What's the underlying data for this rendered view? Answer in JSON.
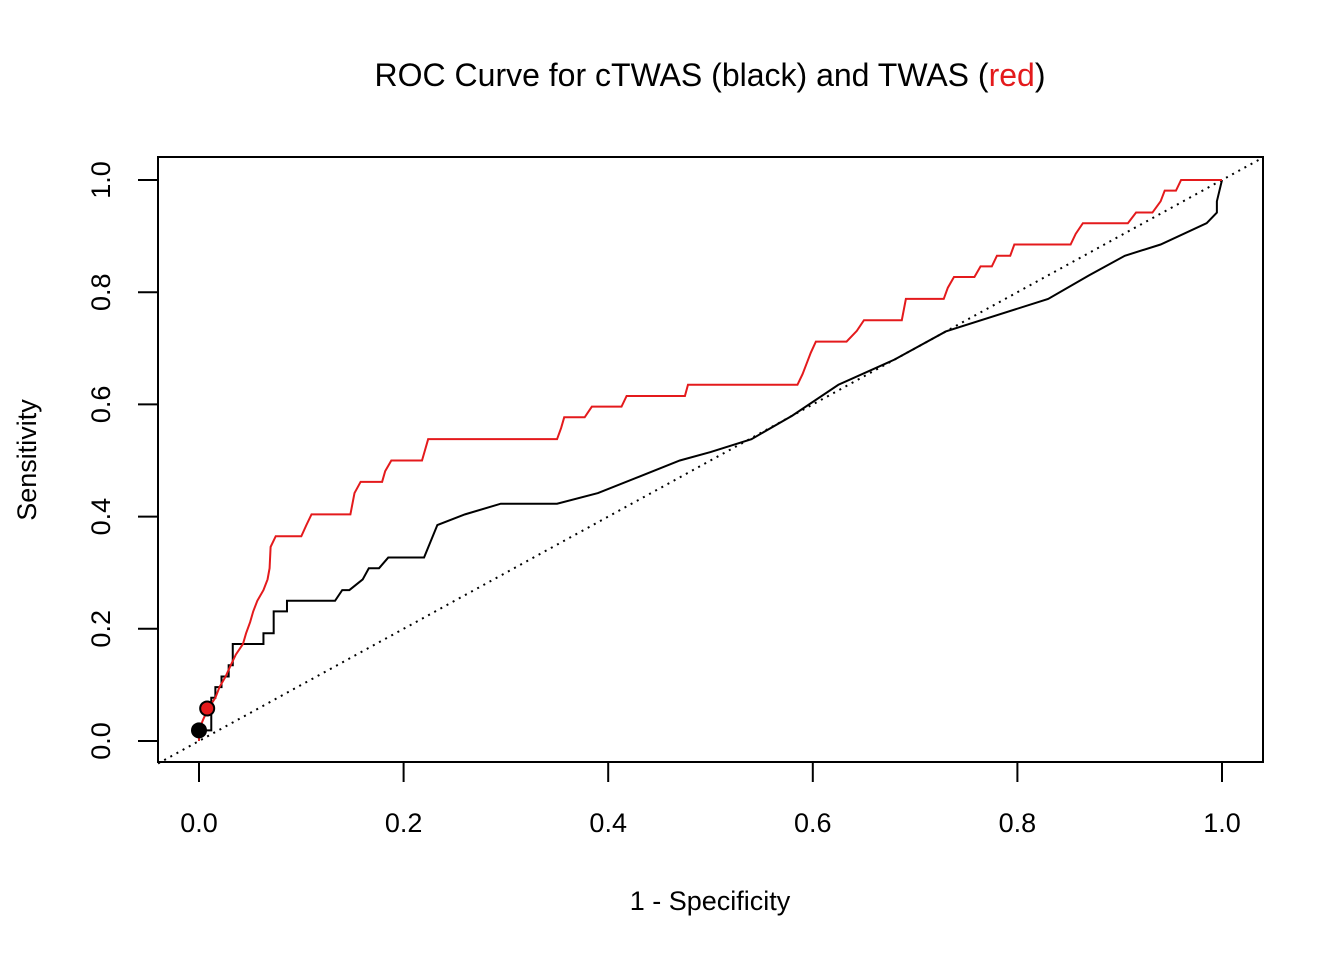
{
  "chart_data": {
    "type": "line",
    "title": {
      "prefix": "ROC Curve for cTWAS (black) and TWAS (",
      "highlight": "red",
      "suffix": ")"
    },
    "xlabel": "1 - Specificity",
    "ylabel": "Sensitivity",
    "xlim": [
      0,
      1
    ],
    "ylim": [
      0,
      1
    ],
    "x_ticks": [
      "0.0",
      "0.2",
      "0.4",
      "0.6",
      "0.8",
      "1.0"
    ],
    "y_ticks": [
      "0.0",
      "0.2",
      "0.4",
      "0.6",
      "0.8",
      "1.0"
    ],
    "grid": false,
    "colors": {
      "ctwas": "#000000",
      "twas": "#e41a1c",
      "reference": "#000000"
    },
    "series": [
      {
        "key": "ctwas",
        "color": "#000000",
        "step": true,
        "points": [
          [
            0.0,
            0.0
          ],
          [
            0.0,
            0.019
          ],
          [
            0.012,
            0.019
          ],
          [
            0.012,
            0.077
          ],
          [
            0.016,
            0.077
          ],
          [
            0.016,
            0.096
          ],
          [
            0.022,
            0.096
          ],
          [
            0.022,
            0.115
          ],
          [
            0.029,
            0.115
          ],
          [
            0.029,
            0.135
          ],
          [
            0.033,
            0.135
          ],
          [
            0.033,
            0.173
          ],
          [
            0.063,
            0.173
          ],
          [
            0.063,
            0.192
          ],
          [
            0.073,
            0.192
          ],
          [
            0.073,
            0.231
          ],
          [
            0.086,
            0.231
          ],
          [
            0.086,
            0.25
          ],
          [
            0.133,
            0.25
          ],
          [
            0.14,
            0.269
          ],
          [
            0.147,
            0.269
          ],
          [
            0.16,
            0.288
          ],
          [
            0.166,
            0.308
          ],
          [
            0.176,
            0.308
          ],
          [
            0.185,
            0.327
          ],
          [
            0.22,
            0.327
          ],
          [
            0.233,
            0.385
          ],
          [
            0.26,
            0.404
          ],
          [
            0.295,
            0.423
          ],
          [
            0.35,
            0.423
          ],
          [
            0.39,
            0.442
          ],
          [
            0.43,
            0.471
          ],
          [
            0.47,
            0.5
          ],
          [
            0.5,
            0.515
          ],
          [
            0.54,
            0.538
          ],
          [
            0.58,
            0.58
          ],
          [
            0.625,
            0.635
          ],
          [
            0.68,
            0.68
          ],
          [
            0.73,
            0.73
          ],
          [
            0.83,
            0.788
          ],
          [
            0.87,
            0.83
          ],
          [
            0.905,
            0.865
          ],
          [
            0.94,
            0.885
          ],
          [
            0.985,
            0.923
          ],
          [
            0.995,
            0.942
          ],
          [
            0.995,
            0.962
          ],
          [
            1.0,
            1.0
          ]
        ]
      },
      {
        "key": "twas",
        "color": "#e41a1c",
        "step": true,
        "points": [
          [
            0.0,
            0.0
          ],
          [
            0.0,
            0.019
          ],
          [
            0.004,
            0.038
          ],
          [
            0.009,
            0.058
          ],
          [
            0.016,
            0.077
          ],
          [
            0.02,
            0.096
          ],
          [
            0.026,
            0.115
          ],
          [
            0.031,
            0.135
          ],
          [
            0.036,
            0.154
          ],
          [
            0.043,
            0.173
          ],
          [
            0.046,
            0.192
          ],
          [
            0.05,
            0.212
          ],
          [
            0.053,
            0.231
          ],
          [
            0.057,
            0.25
          ],
          [
            0.063,
            0.269
          ],
          [
            0.067,
            0.288
          ],
          [
            0.069,
            0.308
          ],
          [
            0.07,
            0.346
          ],
          [
            0.075,
            0.365
          ],
          [
            0.1,
            0.365
          ],
          [
            0.105,
            0.385
          ],
          [
            0.11,
            0.404
          ],
          [
            0.148,
            0.404
          ],
          [
            0.152,
            0.442
          ],
          [
            0.158,
            0.462
          ],
          [
            0.179,
            0.462
          ],
          [
            0.182,
            0.481
          ],
          [
            0.188,
            0.5
          ],
          [
            0.218,
            0.5
          ],
          [
            0.221,
            0.519
          ],
          [
            0.224,
            0.538
          ],
          [
            0.35,
            0.538
          ],
          [
            0.354,
            0.558
          ],
          [
            0.357,
            0.577
          ],
          [
            0.377,
            0.577
          ],
          [
            0.384,
            0.596
          ],
          [
            0.413,
            0.596
          ],
          [
            0.418,
            0.615
          ],
          [
            0.475,
            0.615
          ],
          [
            0.478,
            0.635
          ],
          [
            0.585,
            0.635
          ],
          [
            0.59,
            0.654
          ],
          [
            0.594,
            0.673
          ],
          [
            0.598,
            0.692
          ],
          [
            0.603,
            0.712
          ],
          [
            0.633,
            0.712
          ],
          [
            0.643,
            0.731
          ],
          [
            0.65,
            0.75
          ],
          [
            0.687,
            0.75
          ],
          [
            0.691,
            0.788
          ],
          [
            0.728,
            0.788
          ],
          [
            0.732,
            0.808
          ],
          [
            0.738,
            0.827
          ],
          [
            0.758,
            0.827
          ],
          [
            0.764,
            0.846
          ],
          [
            0.775,
            0.846
          ],
          [
            0.78,
            0.865
          ],
          [
            0.793,
            0.865
          ],
          [
            0.797,
            0.885
          ],
          [
            0.852,
            0.885
          ],
          [
            0.857,
            0.904
          ],
          [
            0.864,
            0.923
          ],
          [
            0.908,
            0.923
          ],
          [
            0.916,
            0.942
          ],
          [
            0.932,
            0.942
          ],
          [
            0.94,
            0.962
          ],
          [
            0.944,
            0.981
          ],
          [
            0.955,
            0.981
          ],
          [
            0.96,
            1.0
          ],
          [
            1.0,
            1.0
          ]
        ]
      }
    ],
    "reference_line": {
      "style": "dotted",
      "from": [
        -0.04,
        -0.04
      ],
      "to": [
        1.04,
        1.04
      ]
    },
    "markers": [
      {
        "series": "ctwas",
        "x": 0.0,
        "y": 0.019,
        "color": "#000000"
      },
      {
        "series": "twas",
        "x": 0.008,
        "y": 0.058,
        "color": "#e41a1c"
      }
    ]
  }
}
